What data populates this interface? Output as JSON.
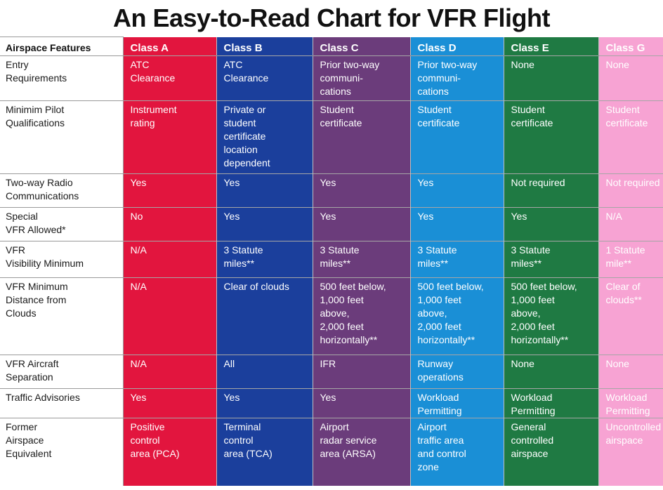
{
  "chart_data": {
    "type": "table",
    "title": "An Easy-to-Read Chart for VFR Flight",
    "header": [
      "Airspace Features",
      "Class A",
      "Class B",
      "Class C",
      "Class D",
      "Class E",
      "Class G"
    ],
    "colors": {
      "class_a": "#e2153e",
      "class_b": "#1b3f9c",
      "class_c": "#6b3c7b",
      "class_d": "#1a8fd6",
      "class_e": "#1f7a43",
      "class_g": "#f7a3d3"
    },
    "rows": [
      {
        "feature": [
          "Entry",
          "Requirements"
        ],
        "cells": [
          [
            "ATC",
            "Clearance"
          ],
          [
            "ATC",
            "Clearance"
          ],
          [
            "Prior two-way",
            "communi-",
            "cations"
          ],
          [
            "Prior two-way",
            "communi-",
            "cations"
          ],
          [
            "None"
          ],
          [
            "None"
          ]
        ]
      },
      {
        "feature": [
          "Minimim Pilot",
          "Qualifications"
        ],
        "cells": [
          [
            "Instrument",
            "rating"
          ],
          [
            "Private or",
            "student",
            "certificate",
            "location",
            "dependent"
          ],
          [
            "Student",
            "certificate"
          ],
          [
            "Student",
            "certificate"
          ],
          [
            "Student",
            "certificate"
          ],
          [
            "Student",
            "certificate"
          ]
        ]
      },
      {
        "feature": [
          "Two-way Radio",
          "Communications"
        ],
        "cells": [
          [
            "Yes"
          ],
          [
            "Yes"
          ],
          [
            "Yes"
          ],
          [
            "Yes"
          ],
          [
            "Not required"
          ],
          [
            "Not required"
          ]
        ]
      },
      {
        "feature": [
          "Special",
          "VFR Allowed*"
        ],
        "cells": [
          [
            "No"
          ],
          [
            "Yes"
          ],
          [
            "Yes"
          ],
          [
            "Yes"
          ],
          [
            "Yes"
          ],
          [
            "N/A"
          ]
        ]
      },
      {
        "feature": [
          "VFR",
          "Visibility Minimum"
        ],
        "cells": [
          [
            "N/A"
          ],
          [
            "3 Statute",
            "miles**"
          ],
          [
            "3 Statute",
            "miles**"
          ],
          [
            "3 Statute",
            "miles**"
          ],
          [
            "3 Statute",
            "miles**"
          ],
          [
            "1 Statute",
            "mile**"
          ]
        ]
      },
      {
        "feature": [
          "VFR Minimum",
          "Distance from",
          "Clouds"
        ],
        "cells": [
          [
            "N/A"
          ],
          [
            "Clear of clouds"
          ],
          [
            "500 feet below,",
            "1,000 feet",
            "above,",
            "2,000 feet",
            "horizontally**"
          ],
          [
            "500 feet below,",
            "1,000 feet",
            "above,",
            "2,000 feet",
            "horizontally**"
          ],
          [
            "500 feet below,",
            "1,000 feet",
            "above,",
            "2,000 feet",
            "horizontally**"
          ],
          [
            "Clear of",
            "clouds**"
          ]
        ]
      },
      {
        "feature": [
          "VFR Aircraft",
          "Separation"
        ],
        "cells": [
          [
            "N/A"
          ],
          [
            "All"
          ],
          [
            "IFR"
          ],
          [
            "Runway",
            "operations"
          ],
          [
            "None"
          ],
          [
            "None"
          ]
        ]
      },
      {
        "feature": [
          "Traffic Advisories"
        ],
        "cells": [
          [
            "Yes"
          ],
          [
            "Yes"
          ],
          [
            "Yes"
          ],
          [
            "Workload",
            "Permitting"
          ],
          [
            "Workload",
            "Permitting"
          ],
          [
            "Workload",
            "Permitting"
          ]
        ]
      },
      {
        "feature": [
          "Former",
          "Airspace",
          "Equivalent"
        ],
        "cells": [
          [
            "Positive",
            "control",
            "area (PCA)"
          ],
          [
            "Terminal",
            "control",
            "area (TCA)"
          ],
          [
            "Airport",
            "radar service",
            "area (ARSA)"
          ],
          [
            "Airport",
            "traffic area",
            "and control",
            "zone"
          ],
          [
            "General",
            "controlled",
            "airspace"
          ],
          [
            "Uncontrolled",
            "airspace"
          ]
        ]
      }
    ]
  }
}
